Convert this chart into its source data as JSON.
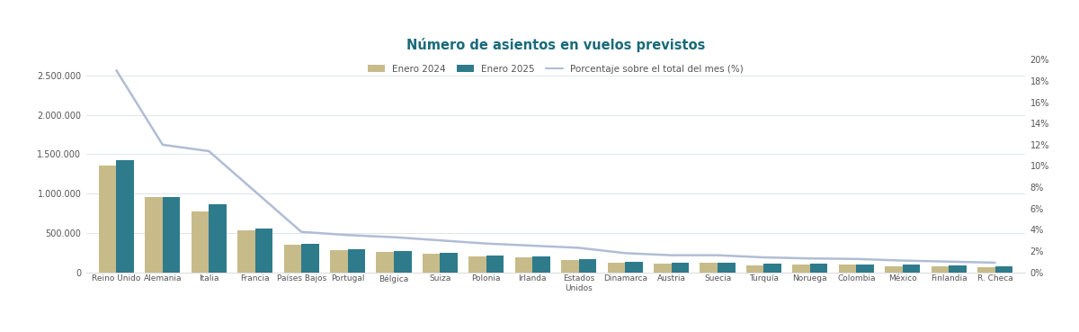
{
  "title": "Número de asientos en vuelos previstos",
  "categories": [
    "Reino Unido",
    "Alemania",
    "Italia",
    "Francia",
    "Países Bajos",
    "Portugal",
    "Bélgica",
    "Suiza",
    "Polonia",
    "Irlanda",
    "Estados\nUnidos",
    "Dinamarca",
    "Austria",
    "Suecia",
    "Turquía",
    "Noruega",
    "Colombia",
    "México",
    "Finlandia",
    "R. Checa"
  ],
  "enero2024": [
    1360000,
    960000,
    775000,
    530000,
    350000,
    280000,
    255000,
    235000,
    205000,
    195000,
    160000,
    120000,
    115000,
    118000,
    90000,
    100000,
    95000,
    75000,
    70000,
    60000
  ],
  "enero2025": [
    1430000,
    955000,
    865000,
    555000,
    365000,
    295000,
    270000,
    250000,
    215000,
    200000,
    170000,
    130000,
    120000,
    120000,
    110000,
    105000,
    100000,
    100000,
    85000,
    80000
  ],
  "percentage": [
    19.0,
    12.0,
    11.4,
    7.6,
    3.8,
    3.5,
    3.3,
    3.0,
    2.7,
    2.5,
    2.3,
    1.8,
    1.6,
    1.6,
    1.4,
    1.3,
    1.25,
    1.1,
    1.0,
    0.9
  ],
  "bar_color_2024": "#c8bb8a",
  "bar_color_2025": "#2e7b8c",
  "line_color": "#b0bdd4",
  "background_color": "#ffffff",
  "plot_bg_color": "#ffffff",
  "grid_color": "#e0e5ee",
  "title_color": "#1a6a7a",
  "legend_enero2024": "Enero 2024",
  "legend_enero2025": "Enero 2025",
  "legend_percentage": "Porcentaje sobre el total del mes (%)",
  "ylim_left": [
    0,
    2700000
  ],
  "ylim_right": [
    0,
    20
  ],
  "yticks_left": [
    0,
    500000,
    1000000,
    1500000,
    2000000,
    2500000
  ],
  "yticks_right": [
    0,
    2,
    4,
    6,
    8,
    10,
    12,
    14,
    16,
    18,
    20
  ]
}
